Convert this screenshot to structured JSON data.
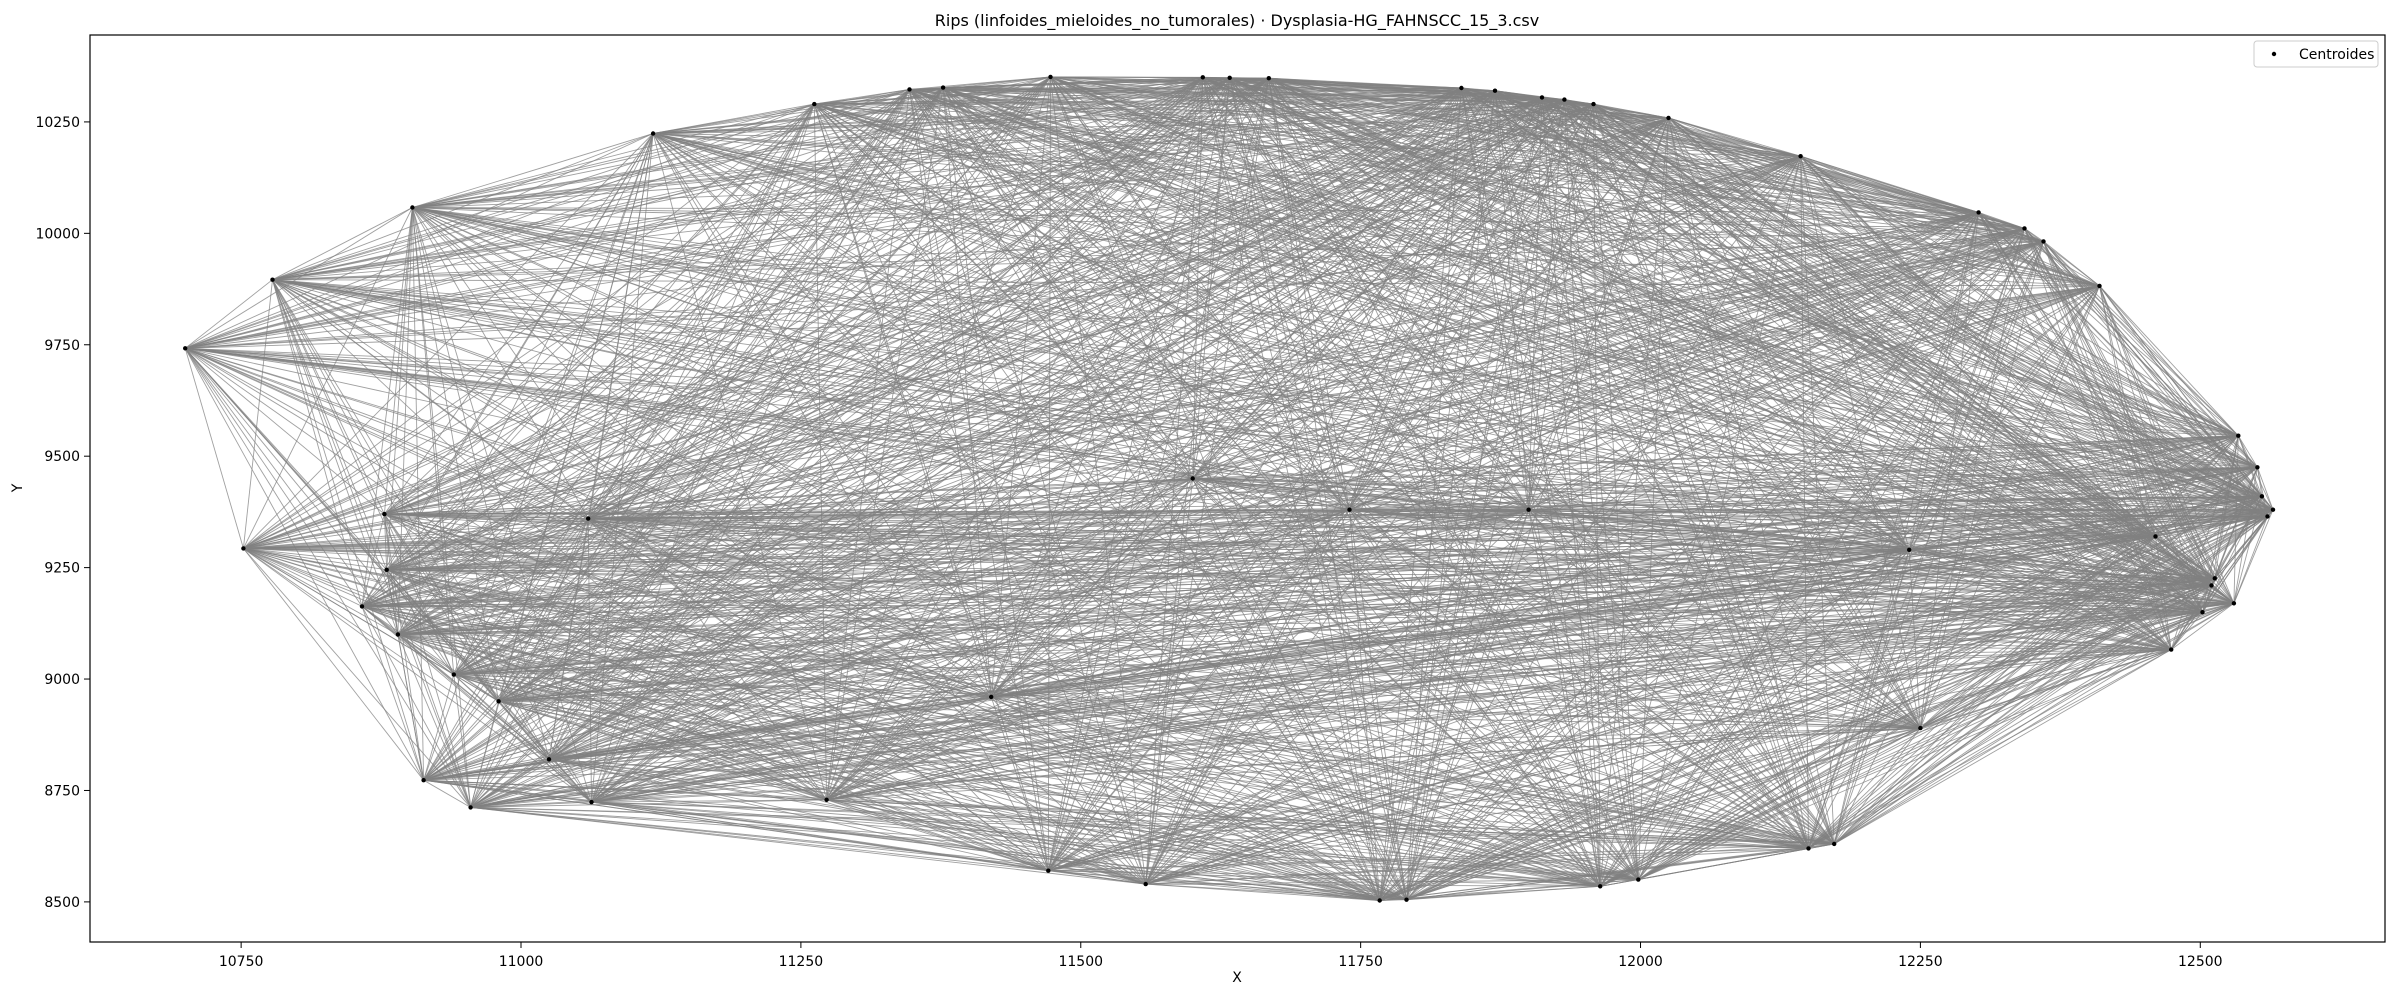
{
  "chart_data": {
    "type": "scatter",
    "title": "Rips (linfoides_mieloides_no_tumorales) · Dysplasia-HG_FAHNSCC_15_3.csv",
    "xlabel": "X",
    "ylabel": "Y",
    "xlim": [
      10615,
      12665
    ],
    "ylim": [
      8410,
      10445
    ],
    "xticks": [
      "10750",
      "11000",
      "11250",
      "11500",
      "11750",
      "12000",
      "12250",
      "12500"
    ],
    "yticks": [
      "8500",
      "8750",
      "9000",
      "9250",
      "9500",
      "9750",
      "10000",
      "10250"
    ],
    "legend": {
      "position": "top-right",
      "entries": [
        "Centroides"
      ]
    },
    "grid": false,
    "edge_color": "#808080",
    "point_color": "#000000",
    "series": [
      {
        "name": "Centroides",
        "x": [
          10700,
          10752,
          10778,
          10858,
          10880,
          10903,
          10913,
          10955,
          11063,
          11118,
          11262,
          11347,
          11377,
          11473,
          11609,
          11633,
          11668,
          11840,
          11870,
          11912,
          11932,
          11958,
          12025,
          12143,
          12302,
          12343,
          12360,
          12410,
          12534,
          12551,
          12555,
          12565,
          12560,
          12513,
          12510,
          12502,
          12474,
          12173,
          12150,
          11998,
          11964,
          11791,
          11767,
          11558,
          11471,
          11273,
          10878,
          10890,
          10940,
          10980,
          11025,
          11060,
          11420,
          11740,
          11900,
          12240,
          12460,
          12530,
          12250,
          11600
        ],
        "y": [
          9742,
          9293,
          9896,
          9163,
          9245,
          10058,
          8773,
          8712,
          8724,
          10224,
          10290,
          10323,
          10327,
          10351,
          10350,
          10349,
          10348,
          10326,
          10320,
          10305,
          10300,
          10290,
          10259,
          10173,
          10047,
          10011,
          9982,
          9882,
          9546,
          9475,
          9410,
          9380,
          9365,
          9226,
          9210,
          9150,
          9066,
          8630,
          8620,
          8550,
          8535,
          8505,
          8503,
          8540,
          8570,
          8729,
          9370,
          9100,
          9010,
          8950,
          8820,
          9360,
          8960,
          9380,
          9380,
          9290,
          9320,
          9170,
          8890,
          9450
        ]
      }
    ]
  }
}
